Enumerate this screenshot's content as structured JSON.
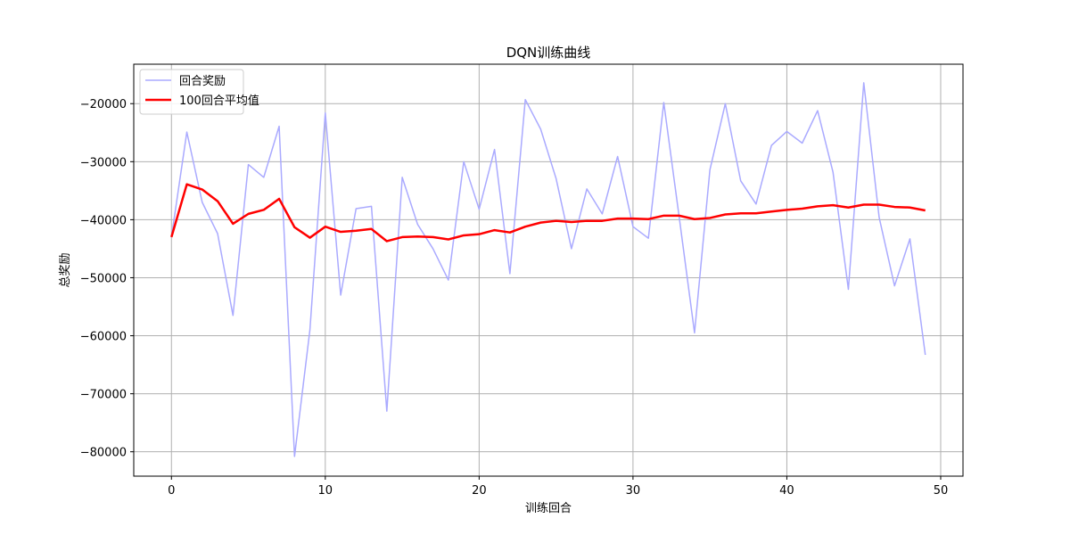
{
  "chart_data": {
    "type": "line",
    "title": "DQN训练曲线",
    "xlabel": "训练回合",
    "ylabel": "总奖励",
    "xlim": [
      -2.45,
      51.45
    ],
    "ylim": [
      -84200,
      -13200
    ],
    "xticks": [
      0,
      10,
      20,
      30,
      40,
      50
    ],
    "yticks": [
      -80000,
      -70000,
      -60000,
      -50000,
      -40000,
      -30000,
      -20000
    ],
    "ytick_labels": [
      "−80000",
      "−70000",
      "−60000",
      "−50000",
      "−40000",
      "−30000",
      "−20000"
    ],
    "grid": true,
    "legend_position": "top-left",
    "x": [
      0,
      1,
      2,
      3,
      4,
      5,
      6,
      7,
      8,
      9,
      10,
      11,
      12,
      13,
      14,
      15,
      16,
      17,
      18,
      19,
      20,
      21,
      22,
      23,
      24,
      25,
      26,
      27,
      28,
      29,
      30,
      31,
      32,
      33,
      34,
      35,
      36,
      37,
      38,
      39,
      40,
      41,
      42,
      43,
      44,
      45,
      46,
      47,
      48,
      49
    ],
    "series": [
      {
        "name": "回合奖励",
        "color": "#aaaaff",
        "values": [
          -43000,
          -24900,
          -37000,
          -42400,
          -56500,
          -30500,
          -32700,
          -23900,
          -80800,
          -59000,
          -21600,
          -53000,
          -38100,
          -37700,
          -73000,
          -32700,
          -40800,
          -45000,
          -50400,
          -30000,
          -38200,
          -27900,
          -49300,
          -19300,
          -24400,
          -32900,
          -45000,
          -34700,
          -39000,
          -29100,
          -41200,
          -43200,
          -19800,
          -39500,
          -59500,
          -31400,
          -20000,
          -33300,
          -37300,
          -27200,
          -24800,
          -26800,
          -21200,
          -31800,
          -52000,
          -16400,
          -39600,
          -51400,
          -43300,
          -63300
        ]
      },
      {
        "name": "100回合平均值",
        "color": "#ff0000",
        "values": [
          -43000,
          -33900,
          -34800,
          -36800,
          -40700,
          -39000,
          -38300,
          -36400,
          -41300,
          -43100,
          -41200,
          -42100,
          -41900,
          -41600,
          -43700,
          -43000,
          -42900,
          -43000,
          -43400,
          -42700,
          -42500,
          -41800,
          -42200,
          -41200,
          -40500,
          -40200,
          -40400,
          -40200,
          -40200,
          -39800,
          -39800,
          -39900,
          -39300,
          -39300,
          -39900,
          -39700,
          -39100,
          -38900,
          -38900,
          -38600,
          -38300,
          -38100,
          -37700,
          -37500,
          -37900,
          -37400,
          -37400,
          -37800,
          -37900,
          -38400
        ]
      }
    ]
  }
}
